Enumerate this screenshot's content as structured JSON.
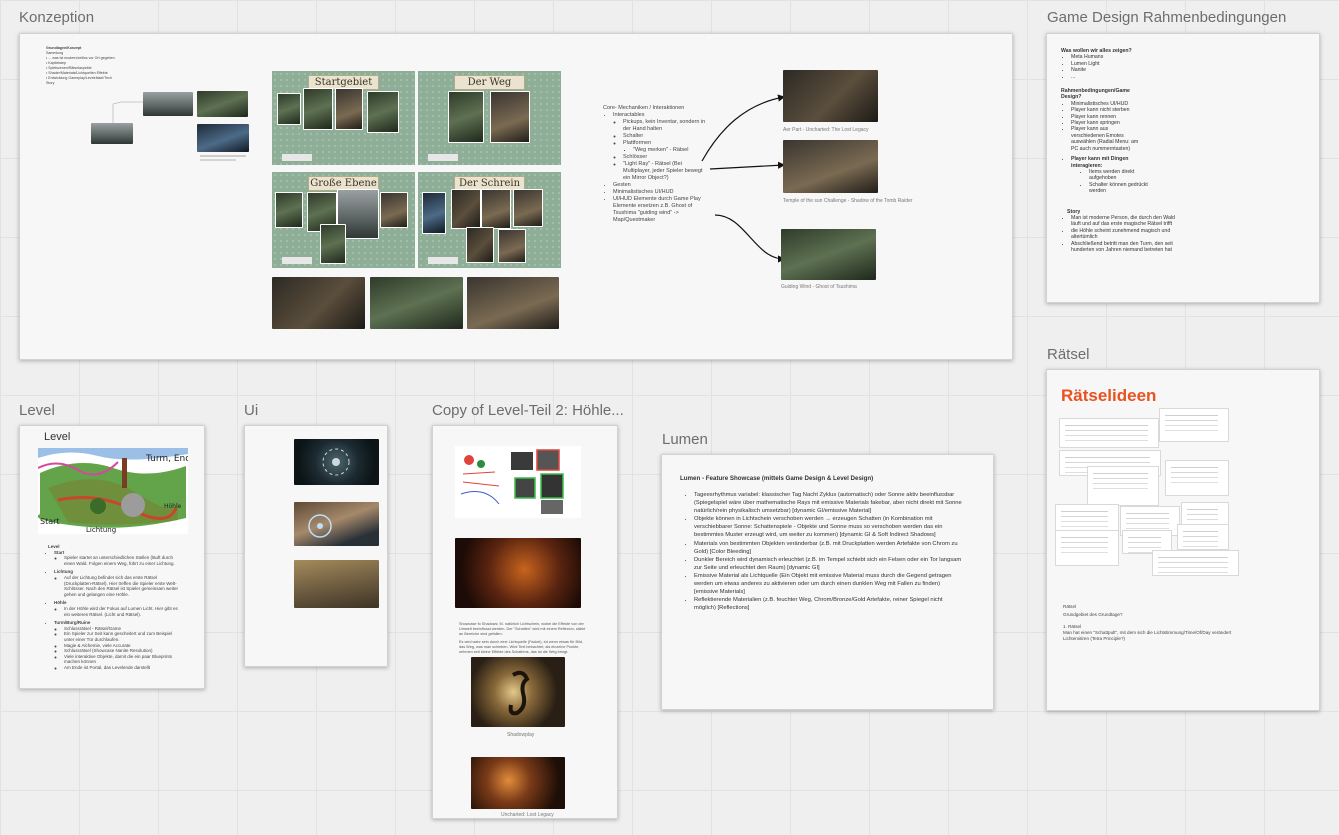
{
  "frames": {
    "konzeption": {
      "title": "Konzeption"
    },
    "gamedesign": {
      "title": "Game Design Rahmenbedingungen",
      "section1_heading": "Was wollen wir alles zeigen?",
      "section1_items": [
        "Meta Humans",
        "Lumen Light",
        "Nanite",
        "..."
      ],
      "section2_heading": "Rahmenbedingungen/Game Design?",
      "section2_items": [
        "Minimalistisches UI/HUD",
        "Player kann nicht sterben",
        "Player kann rennen",
        "Player kann springen",
        "Player kann aus verschiedenen Emotes auswählen (Radial Menu: am PC auch nummerntasten)"
      ],
      "section2_sub_heading": "Player kann mit Dingen interagieren:",
      "section2_sub_items": [
        "Items werden direkt aufgehoben",
        "Schalter können gedrückt werden"
      ],
      "story_heading": "Story",
      "story_items": [
        "Man ist moderne Person, die durch den Wald läuft und auf das erste magische Rätsel trifft",
        "die Höhle scheint zunehmend magisch und  altertümlich",
        "Abschließend betritt man den Turm, den seit hunderten von Jahren niemand betreten hat"
      ]
    },
    "level": {
      "title": "Level",
      "inner_title": "Level",
      "map_labels": {
        "turm": "Turm, Ende",
        "start": "Start",
        "hoehle": "Höhle",
        "lichtung": "Lichtung"
      },
      "list_heading": "Level",
      "items": [
        {
          "label": "Start",
          "sub": [
            "Spieler startet an unterschiedlichen Stellen (läuft durch einen Wald. Folgen einem Weg, führt zu einer Lichtung."
          ]
        },
        {
          "label": "Lichtung",
          "sub": [
            "Auf der Lichtung befindet sich das erste Rätsel (Druckplatten-Rätsel). Hier treffen die Spieler erste Welt-Schlösser. Nach den Rätsel ist Spieler gemeinsam weiter gehen und gelangen eine Höhle."
          ]
        },
        {
          "label": "Höhle",
          "sub": [
            "In der Höhle wird der Fokus auf Lumen Licht. Hier gibt es ein weiteres Rätsel. (Licht und Rätsel)."
          ]
        },
        {
          "label": "Turm/Burg/Ruine",
          "sub": [
            "Schlussrätsel - Rätsel/Game",
            "Ein Spieler zur Seit kann gescheitert und zum Beispiel unter einer Tür durchlaufen.",
            "Magie & Alchemie, viele Accurate",
            "Schlussrätsel (Showcase Nanite Resolution)",
            "Viele interaktive Objekte, damit die ein paar Blueprints machen können",
            "Am Ende ist Portal, das Levelende darstellt"
          ]
        }
      ]
    },
    "ui": {
      "title": "Ui"
    },
    "copylevel": {
      "title": "Copy of Level-Teil 2: Höhle...",
      "paragraph1": "Showcase fo Shadows: M. natürlich Lichtschein, wobei die Effekte von der Umwelt beeinflusst werden. Der \"Schatten\" wird mit einem Reflexion, stärkt an Bereiche sind gefallen.",
      "paragraph2": "Es wird wahr sein durch eine Lichtquelle (Fackel), tut wenn etwas für Bild, das Weg, was man schieben. Wird Text betrachtet, als einzelne Punkte, nehmen seit kleine Effekte des Schattens, das ist die Weg bringt.",
      "caption1": "Shadowplay",
      "caption2": "Uncharted: Lost Legacy"
    },
    "lumen": {
      "title": "Lumen",
      "heading": "Lumen - Feature Showcase (mittels Game Design & Level Design)",
      "items": [
        "Tageesrhythmus variabel: klassischer Tag Nacht Zyklus (automatisch) oder Sonne aktiv beeinflussbar (Spiegelspiel wäre über mathematische Rays mit emissive Materials fakebar, aber nicht direkt mit Sonne natürlich/rein physikalisch umsetzbar) [dynamic GI/emissive Material]",
        "Objekte können in Lichtschein verschoben werden → erzeugen Schatten (in Kombination mit verschiebbarer Sonne: Schattenspiele - Objekte und Sonne muss so verschoben werden das ein bestimmtes Muster erzeugt wird, um weiter zu kommen) [dynamic GI & Soft Indirect Shadows]",
        "Materials von bestimmten Objekten veränderbar (z.B. mit Druckplatten werden Artefakte von Chrom zu Gold) [Color Bleeding]",
        "Dunkler Bereich wird dynamisch erleuchtet (z.B. im Tempel schiebt sich ein Felsen oder ein Tor langsam zur Seite und erleuchtet den Raum) [dynamic GI]",
        "Emissive Material als Lichtquelle (Ein Objekt mit emissive Material muss durch die Gegend getragen werden um etwas anderes zu aktivieren oder um durch einen dunklen Weg mit Fallen zu finden) [emissive Materials]",
        "Reflektierende Materialien (z.B. feuchter Weg, Chrom/Bronze/Gold Artefakte, reiner Spiegel nicht möglich) [Reflections]"
      ]
    },
    "raetsel": {
      "title": "Rätsel",
      "heading": "Rätselideen",
      "text_lines": [
        "Rätsel",
        "Grundgebiet des Grundtage?",
        "1. Rätsel",
        "Man hat einen \"Schattpult\", mit dem sich die Lichtstimmung/Time/Of/Day verändert",
        "Lichtemitiren (Tetra Principle?)"
      ]
    }
  },
  "konzeption": {
    "left_notes": {
      "heading": "Grundlagen/Konzept",
      "lines": [
        "Sammlung",
        "• ... was ist modern/zeitlos vor Ort gegeben",
        "• Kapitelstep",
        "• Spielszenen/Rätselaspekte",
        "• Shader/Materials/Lichtquellen Effekte",
        "• Entwicklung Gameplay/Levelrätsel/Tech",
        "Story"
      ]
    },
    "sheets": [
      {
        "label": "Startgebiet"
      },
      {
        "label": "Der Weg"
      },
      {
        "label": "Große Ebene"
      },
      {
        "label": "Der Schrein"
      }
    ],
    "core_list": {
      "heading": "Core- Mechaniken / Interaktionen",
      "items": [
        {
          "label": "Interactables",
          "sub": [
            "Pickups, kein Inventar, sondern in der Hand halten",
            "Schalter",
            "Plattformen"
          ],
          "subsub": [
            "\"Weg merken\" - Rätsel"
          ],
          "sub2": [
            "Schlösser",
            "\"Light Ray\" - Rätsel (Bei Multiplayer, jeder Spieler bewegt ein Mirror Object?)"
          ]
        },
        {
          "label": "Gesten"
        },
        {
          "label": "Minimalistisches UI/HUD"
        },
        {
          "label": "UI/HUD Elemente durch Game Play Elemente ersetzen z.B. Ghost of Tsushima \"guiding wind\" -> Map/Questmaker"
        }
      ]
    },
    "captions": [
      "Aer Part - Uncharted: The Lost Legacy",
      "Temple of the sun Challenge - Shadow of the Tomb Raider",
      "Guiding Wind - Ghost of Tsushima"
    ]
  },
  "colors": {
    "canvas": "#efefef",
    "accent_red": "#e8531f"
  }
}
